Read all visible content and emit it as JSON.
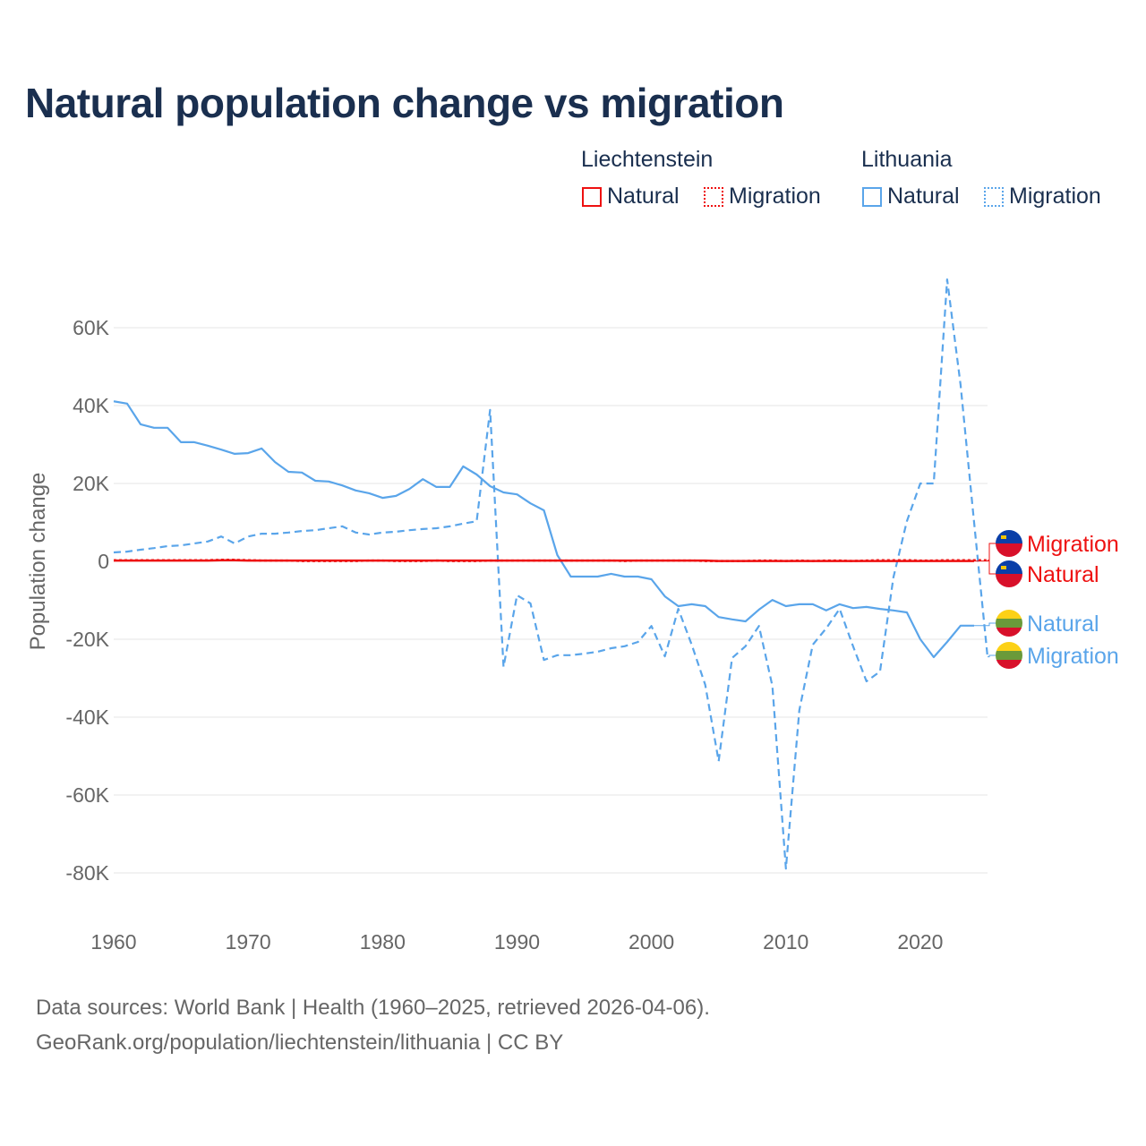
{
  "title": "Natural population change vs migration",
  "legend": {
    "groups": [
      {
        "name": "Liechtenstein",
        "items": [
          "Natural",
          "Migration"
        ]
      },
      {
        "name": "Lithuania",
        "items": [
          "Natural",
          "Migration"
        ]
      }
    ]
  },
  "colors": {
    "liechtenstein": "#ee1111",
    "lithuania": "#5aa5ea"
  },
  "footer": {
    "line1": "Data sources: World Bank | Health (1960–2025, retrieved 2026-04-06).",
    "line2": "GeoRank.org/population/liechtenstein/lithuania | CC BY"
  },
  "chart_data": {
    "type": "line",
    "title": "Natural population change vs migration",
    "xlabel": "",
    "ylabel": "Population change",
    "xlim": [
      1960,
      2025
    ],
    "ylim": [
      -90,
      75
    ],
    "x_ticks": [
      1960,
      1970,
      1980,
      1990,
      2000,
      2010,
      2020
    ],
    "y_ticks": [
      60,
      40,
      20,
      0,
      -20,
      -40,
      -60,
      -80
    ],
    "y_tick_labels": [
      "60K",
      "40K",
      "20K",
      "0",
      "-20K",
      "-40K",
      "-60K",
      "-80K"
    ],
    "units": "thousands",
    "grid": "horizontal",
    "series": [
      {
        "name": "Natural",
        "country": "Liechtenstein",
        "style": "solid",
        "color": "#ee1111",
        "end_label": "Natural",
        "x_start": 1960,
        "values": [
          0.2,
          0.2,
          0.2,
          0.2,
          0.2,
          0.2,
          0.2,
          0.2,
          0.3,
          0.3,
          0.2,
          0.2,
          0.2,
          0.2,
          0.2,
          0.2,
          0.2,
          0.2,
          0.2,
          0.2,
          0.2,
          0.2,
          0.2,
          0.2,
          0.2,
          0.2,
          0.2,
          0.2,
          0.2,
          0.2,
          0.2,
          0.2,
          0.2,
          0.2,
          0.2,
          0.2,
          0.2,
          0.2,
          0.2,
          0.2,
          0.2,
          0.2,
          0.2,
          0.2,
          0.2,
          0.1,
          0.1,
          0.1,
          0.1,
          0.1,
          0.1,
          0.1,
          0.1,
          0.1,
          0.1,
          0.1,
          0.1,
          0.1,
          0.1,
          0.1,
          0.1,
          0.1,
          0.1,
          0.1,
          0.1
        ]
      },
      {
        "name": "Migration",
        "country": "Liechtenstein",
        "style": "dotted",
        "color": "#ee1111",
        "end_label": "Migration",
        "x_start": 1960,
        "values": [
          0.3,
          0.3,
          0.3,
          0.3,
          0.3,
          0.3,
          0.3,
          0.3,
          0.4,
          0.4,
          0.3,
          0.2,
          0.2,
          0.2,
          0.1,
          0.1,
          0.1,
          0.1,
          0.1,
          0.2,
          0.2,
          0.1,
          0.1,
          0.1,
          0.2,
          0.1,
          0.1,
          0.1,
          0.2,
          0.2,
          0.2,
          0.2,
          0.2,
          0.2,
          0.2,
          0.2,
          0.2,
          0.2,
          0.1,
          0.2,
          0.2,
          0.2,
          0.2,
          0.2,
          0.1,
          0.1,
          0.1,
          0.1,
          0.2,
          0.2,
          0.1,
          0.2,
          0.1,
          0.2,
          0.2,
          0.1,
          0.2,
          0.3,
          0.3,
          0.3,
          0.2,
          0.2,
          0.3,
          0.3,
          0.3,
          0.3
        ]
      },
      {
        "name": "Natural",
        "country": "Lithuania",
        "style": "solid",
        "color": "#5aa5ea",
        "end_label": "Natural",
        "x_start": 1960,
        "values": [
          41.1,
          40.5,
          35.2,
          34.3,
          34.3,
          30.6,
          30.6,
          29.7,
          28.7,
          27.6,
          27.8,
          29.0,
          25.5,
          23.0,
          22.8,
          20.7,
          20.5,
          19.5,
          18.2,
          17.5,
          16.3,
          16.8,
          18.6,
          21.1,
          19.1,
          19.1,
          24.4,
          22.3,
          19.3,
          17.7,
          17.2,
          14.9,
          13.1,
          1.6,
          -3.9,
          -3.9,
          -3.9,
          -3.2,
          -3.9,
          -3.9,
          -4.6,
          -9.0,
          -11.5,
          -11.0,
          -11.5,
          -14.3,
          -14.9,
          -15.4,
          -12.4,
          -9.9,
          -11.5,
          -11.0,
          -11.0,
          -12.6,
          -11.0,
          -12.0,
          -11.7,
          -12.2,
          -12.6,
          -13.1,
          -20.0,
          -24.6,
          -20.7,
          -16.5,
          -16.5
        ]
      },
      {
        "name": "Migration",
        "country": "Lithuania",
        "style": "dashed",
        "color": "#5aa5ea",
        "end_label": "Migration",
        "x_start": 1960,
        "values": [
          2.3,
          2.5,
          3.0,
          3.4,
          3.9,
          4.1,
          4.6,
          5.1,
          6.4,
          4.6,
          6.4,
          7.1,
          7.1,
          7.4,
          7.8,
          8.0,
          8.5,
          9.0,
          7.4,
          6.9,
          7.4,
          7.6,
          8.0,
          8.3,
          8.5,
          9.0,
          9.7,
          10.3,
          38.9,
          -27.1,
          -8.7,
          -10.8,
          -25.3,
          -24.1,
          -24.1,
          -23.7,
          -23.2,
          -22.3,
          -21.8,
          -20.7,
          -16.6,
          -24.4,
          -12.2,
          -21.4,
          -31.7,
          -51.3,
          -24.8,
          -21.8,
          -16.6,
          -32.0,
          -78.9,
          -38.2,
          -21.4,
          -17.2,
          -12.2,
          -21.8,
          -30.8,
          -28.3,
          -4.1,
          10.3,
          20.0,
          20.0,
          72.4,
          45.3,
          10.0,
          -24.5
        ]
      }
    ]
  }
}
